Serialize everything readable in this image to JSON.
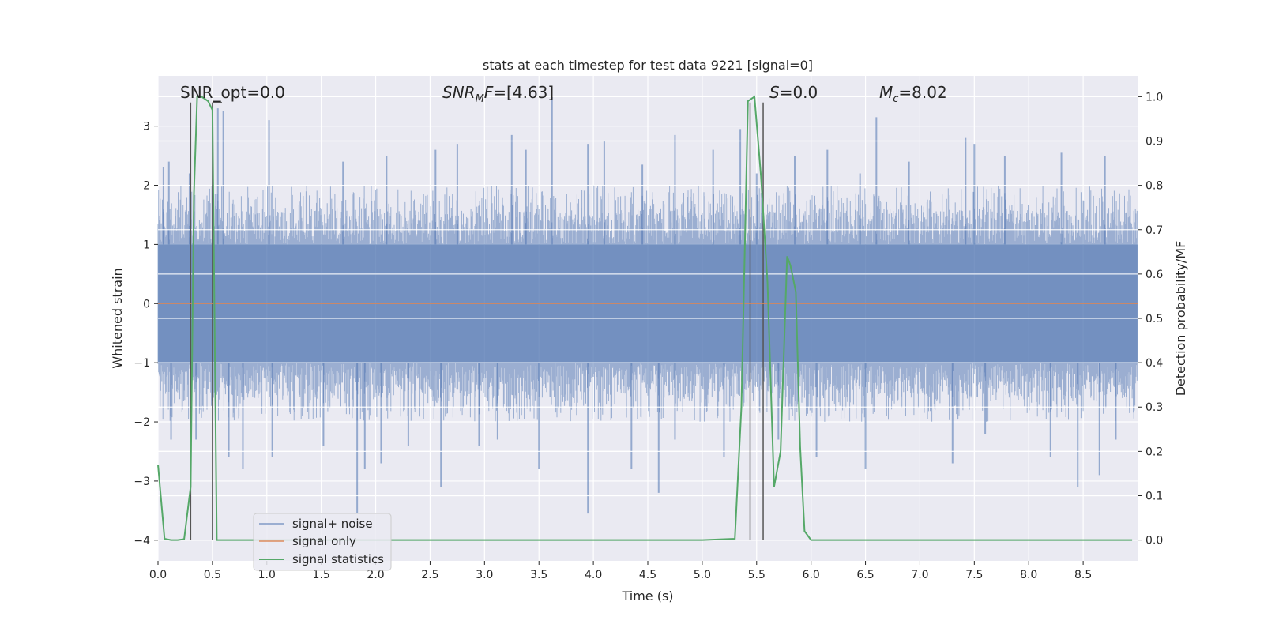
{
  "chart_data": {
    "type": "line",
    "title": "stats at each timestep for test data 9221 [signal=0]",
    "xlabel": "Time (s)",
    "ylabel": "Whitened strain",
    "y2label": "Detection probability/MF",
    "xlim": [
      0,
      9.0
    ],
    "ylim": [
      -4.35,
      3.85
    ],
    "y2lim": [
      -0.047,
      1.047
    ],
    "xticks": [
      0.0,
      0.5,
      1.0,
      1.5,
      2.0,
      2.5,
      3.0,
      3.5,
      4.0,
      4.5,
      5.0,
      5.5,
      6.0,
      6.5,
      7.0,
      7.5,
      8.0,
      8.5
    ],
    "xtick_labels": [
      "0.0",
      "0.5",
      "1.0",
      "1.5",
      "2.0",
      "2.5",
      "3.0",
      "3.5",
      "4.0",
      "4.5",
      "5.0",
      "5.5",
      "6.0",
      "6.5",
      "7.0",
      "7.5",
      "8.0",
      "8.5"
    ],
    "yticks": [
      -4,
      -3,
      -2,
      -1,
      0,
      1,
      2,
      3
    ],
    "ytick_labels": [
      "−4",
      "−3",
      "−2",
      "−1",
      "0",
      "1",
      "2",
      "3"
    ],
    "y2ticks": [
      0.0,
      0.1,
      0.2,
      0.3,
      0.4,
      0.5,
      0.6,
      0.7,
      0.8,
      0.9,
      1.0
    ],
    "y2tick_labels": [
      "0.0",
      "0.1",
      "0.2",
      "0.3",
      "0.4",
      "0.5",
      "0.6",
      "0.7",
      "0.8",
      "0.9",
      "1.0"
    ],
    "grid": true,
    "legend_position": "lower-left",
    "colors": {
      "noise": "#4c72b0",
      "signal": "#dd8452",
      "stats": "#55a868",
      "background": "#eaeaf2",
      "grid": "#ffffff",
      "marker_line": "#555555"
    },
    "series": [
      {
        "name": "signal+ noise",
        "kind": "noise_band",
        "core_amplitude": 1.0,
        "typical_peak": 2.0,
        "peaks": [
          {
            "x": 0.05,
            "y": 2.3
          },
          {
            "x": 0.1,
            "y": 2.4
          },
          {
            "x": 0.29,
            "y": 2.2
          },
          {
            "x": 0.55,
            "y": 3.3
          },
          {
            "x": 0.6,
            "y": 3.25
          },
          {
            "x": 1.02,
            "y": 3.1
          },
          {
            "x": 1.7,
            "y": 2.4
          },
          {
            "x": 2.1,
            "y": 2.5
          },
          {
            "x": 2.55,
            "y": 2.6
          },
          {
            "x": 2.75,
            "y": 2.7
          },
          {
            "x": 3.25,
            "y": 2.85
          },
          {
            "x": 3.38,
            "y": 2.6
          },
          {
            "x": 3.62,
            "y": 3.5
          },
          {
            "x": 3.95,
            "y": 2.7
          },
          {
            "x": 4.1,
            "y": 2.75
          },
          {
            "x": 4.45,
            "y": 2.35
          },
          {
            "x": 4.75,
            "y": 2.85
          },
          {
            "x": 5.1,
            "y": 2.6
          },
          {
            "x": 5.35,
            "y": 2.95
          },
          {
            "x": 5.5,
            "y": 2.2
          },
          {
            "x": 5.85,
            "y": 2.5
          },
          {
            "x": 6.15,
            "y": 2.6
          },
          {
            "x": 6.45,
            "y": 2.2
          },
          {
            "x": 6.6,
            "y": 3.15
          },
          {
            "x": 6.9,
            "y": 2.4
          },
          {
            "x": 7.42,
            "y": 2.8
          },
          {
            "x": 7.5,
            "y": 2.7
          },
          {
            "x": 7.78,
            "y": 2.5
          },
          {
            "x": 8.3,
            "y": 2.55
          },
          {
            "x": 8.7,
            "y": 2.5
          }
        ],
        "troughs": [
          {
            "x": 0.12,
            "y": -2.3
          },
          {
            "x": 0.35,
            "y": -2.3
          },
          {
            "x": 0.65,
            "y": -2.6
          },
          {
            "x": 0.78,
            "y": -2.8
          },
          {
            "x": 1.05,
            "y": -2.6
          },
          {
            "x": 1.52,
            "y": -2.4
          },
          {
            "x": 1.83,
            "y": -3.55
          },
          {
            "x": 1.9,
            "y": -2.8
          },
          {
            "x": 2.05,
            "y": -2.7
          },
          {
            "x": 2.3,
            "y": -2.4
          },
          {
            "x": 2.6,
            "y": -3.1
          },
          {
            "x": 2.95,
            "y": -2.4
          },
          {
            "x": 3.12,
            "y": -2.3
          },
          {
            "x": 3.5,
            "y": -2.8
          },
          {
            "x": 3.95,
            "y": -3.55
          },
          {
            "x": 4.35,
            "y": -2.8
          },
          {
            "x": 4.6,
            "y": -3.2
          },
          {
            "x": 4.75,
            "y": -2.3
          },
          {
            "x": 5.2,
            "y": -2.6
          },
          {
            "x": 5.7,
            "y": -2.3
          },
          {
            "x": 6.05,
            "y": -2.6
          },
          {
            "x": 6.5,
            "y": -2.8
          },
          {
            "x": 7.3,
            "y": -2.7
          },
          {
            "x": 7.6,
            "y": -2.2
          },
          {
            "x": 8.2,
            "y": -2.6
          },
          {
            "x": 8.45,
            "y": -3.1
          },
          {
            "x": 8.65,
            "y": -2.9
          },
          {
            "x": 8.8,
            "y": -2.3
          }
        ]
      },
      {
        "name": "signal only",
        "kind": "line",
        "x": [
          0.0,
          9.0
        ],
        "y": [
          0.0,
          0.0
        ]
      },
      {
        "name": "signal statistics",
        "kind": "line",
        "axis": "right",
        "x": [
          0.0,
          0.06,
          0.12,
          0.18,
          0.24,
          0.3,
          0.33,
          0.36,
          0.4,
          0.46,
          0.5,
          0.54,
          0.58,
          0.64,
          1.0,
          2.0,
          3.0,
          4.0,
          5.0,
          5.3,
          5.36,
          5.42,
          5.48,
          5.54,
          5.6,
          5.66,
          5.72,
          5.78,
          5.81,
          5.86,
          5.9,
          5.94,
          6.0,
          6.06,
          7.0,
          8.0,
          8.95
        ],
        "y": [
          0.17,
          0.003,
          0.0,
          0.0,
          0.002,
          0.12,
          0.78,
          1.0,
          1.0,
          0.99,
          0.97,
          0.0,
          0.0,
          0.0,
          0.0,
          0.0,
          0.0,
          0.0,
          0.0,
          0.003,
          0.3,
          0.99,
          1.0,
          0.82,
          0.58,
          0.12,
          0.2,
          0.64,
          0.62,
          0.56,
          0.21,
          0.02,
          0.0,
          0.0,
          0.0,
          0.0,
          0.0
        ]
      }
    ],
    "vlines": [
      {
        "x": 0.3,
        "y0": -4.0,
        "y1": 3.4
      },
      {
        "x": 0.5,
        "y0": -4.0,
        "y1": 3.4
      },
      {
        "x": 5.44,
        "y0": -4.0,
        "y1": 3.4
      },
      {
        "x": 5.56,
        "y0": -4.0,
        "y1": 3.4
      }
    ],
    "annotations": [
      {
        "id": "snr_opt",
        "text": "SNR_opt=0.0"
      },
      {
        "id": "snr_mf",
        "italic": "SNR",
        "sub": "M",
        "italic2": "F",
        "rest": "=[4.63]"
      },
      {
        "id": "s_stat",
        "italic": "S",
        "rest": "=0.0"
      },
      {
        "id": "mc",
        "italic": "M",
        "sub": "c",
        "rest": "=8.02"
      }
    ]
  }
}
